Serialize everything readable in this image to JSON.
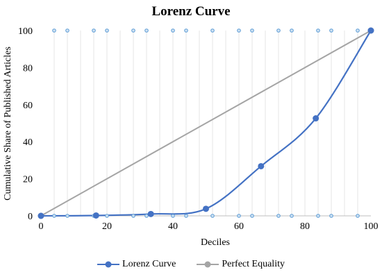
{
  "chart_data": {
    "type": "line",
    "title": "Lorenz Curve",
    "xlabel": "Deciles",
    "ylabel": "Cumulative Share of Published Articles",
    "xlim": [
      0,
      100
    ],
    "ylim": [
      0,
      100
    ],
    "x_ticks": [
      "0",
      "20",
      "40",
      "60",
      "80",
      "100"
    ],
    "y_ticks": [
      "0",
      "20",
      "40",
      "60",
      "80",
      "100"
    ],
    "grid": "vertical",
    "legend_position": "bottom",
    "series": [
      {
        "name": "Lorenz Curve",
        "color": "#4472c4",
        "smooth": true,
        "points": [
          [
            0,
            0
          ],
          [
            16.7,
            0.2
          ],
          [
            33.3,
            1.0
          ],
          [
            50,
            3.8
          ],
          [
            66.7,
            26.8
          ],
          [
            83.3,
            52.6
          ],
          [
            100,
            100
          ]
        ]
      },
      {
        "name": "Perfect Equality",
        "color": "#a5a5a5",
        "smooth": false,
        "points": [
          [
            0,
            0
          ],
          [
            100,
            100
          ]
        ]
      }
    ],
    "marker_rows": {
      "color": "#5b9bd5",
      "top_y": 100,
      "bottom_y": 0,
      "top_x": [
        4,
        8,
        16,
        20,
        28,
        32,
        40,
        44,
        52,
        60,
        64,
        72,
        76,
        84,
        88,
        96
      ],
      "bottom_x": [
        4,
        8,
        16,
        20,
        28,
        32,
        40,
        44,
        52,
        60,
        64,
        72,
        76,
        84,
        88,
        96
      ]
    }
  }
}
